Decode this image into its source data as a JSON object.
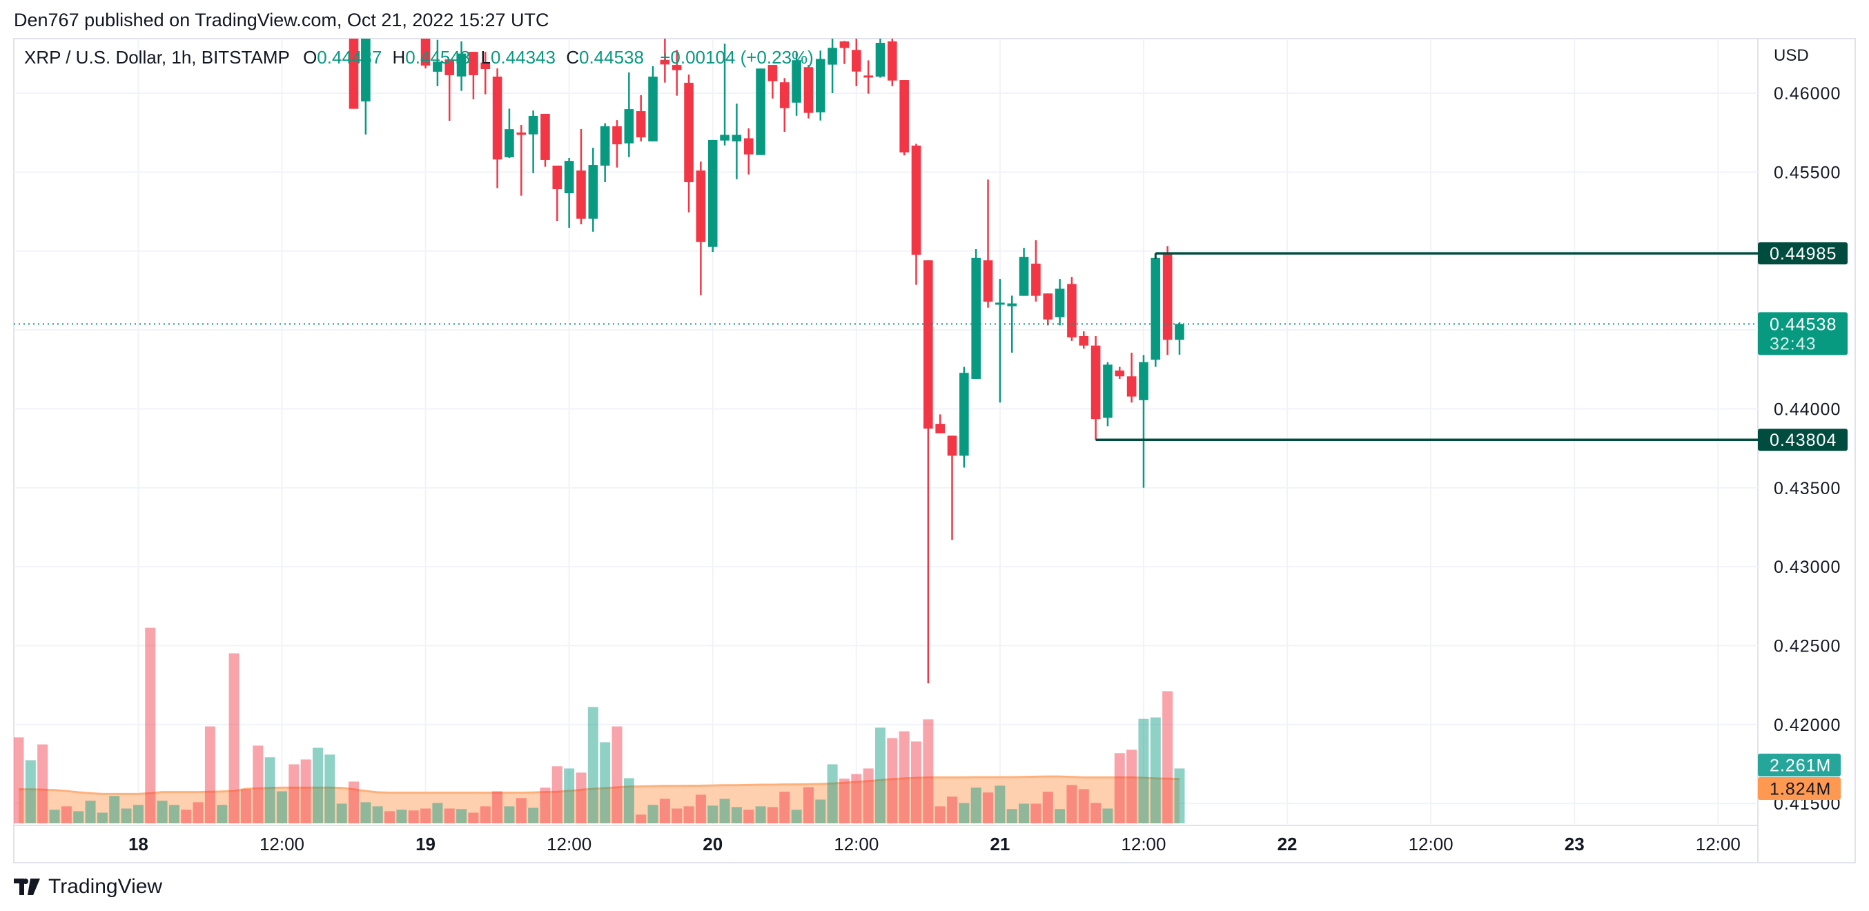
{
  "header": {
    "publish_line": "Den767 published on TradingView.com, Oct 21, 2022 15:27 UTC"
  },
  "legend": {
    "symbol": "XRP / U.S. Dollar, 1h, BITSTAMP",
    "o_label": "O",
    "o": "0.44437",
    "h_label": "H",
    "h": "0.44548",
    "l_label": "L",
    "l": "0.44343",
    "c_label": "C",
    "c": "0.44538",
    "change": "+0.00104 (+0.23%)"
  },
  "price_axis": {
    "currency": "USD",
    "ticks": [
      "0.46000",
      "0.45500",
      "0.44000",
      "0.43500",
      "0.43000",
      "0.42500",
      "0.42000",
      "0.41500"
    ]
  },
  "markers": {
    "resistance": {
      "label": "0.44985",
      "color": "#004d40"
    },
    "support": {
      "label": "0.43804",
      "color": "#004d40"
    },
    "last_price": {
      "label": "0.44538",
      "countdown": "32:43",
      "color": "#089981"
    },
    "volume": {
      "label": "2.261M",
      "color": "#26a69a"
    },
    "volume_ma": {
      "label": "1.824M",
      "color": "#ff9850"
    }
  },
  "time_axis": {
    "ticks": [
      {
        "label": "18",
        "bold": true
      },
      {
        "label": "12:00",
        "bold": false
      },
      {
        "label": "19",
        "bold": true
      },
      {
        "label": "12:00",
        "bold": false
      },
      {
        "label": "20",
        "bold": true
      },
      {
        "label": "12:00",
        "bold": false
      },
      {
        "label": "21",
        "bold": true
      },
      {
        "label": "12:00",
        "bold": false
      },
      {
        "label": "22",
        "bold": true
      },
      {
        "label": "12:00",
        "bold": false
      },
      {
        "label": "23",
        "bold": true
      },
      {
        "label": "12:00",
        "bold": false
      }
    ]
  },
  "footer": {
    "brand": "TradingView"
  },
  "colors": {
    "up": "#089981",
    "down": "#f23645",
    "grid": "#f0f3fa",
    "ma_fill": "#ffcba6",
    "ma_line": "#ffb07a"
  },
  "chart_data": {
    "type": "candlestick",
    "title": "XRP / U.S. Dollar, 1h, BITSTAMP",
    "ylabel": "USD",
    "ylim": [
      0.4115,
      0.4626
    ],
    "grid": true,
    "columns": [
      "time",
      "open",
      "high",
      "low",
      "close",
      "volume_M",
      "up"
    ],
    "candles": [
      [
        "Oct 17 14:00",
        null,
        null,
        null,
        null,
        3.54,
        0
      ],
      [
        "Oct 17 15:00",
        null,
        null,
        null,
        null,
        2.6,
        1
      ],
      [
        "Oct 17 16:00",
        null,
        null,
        null,
        null,
        3.25,
        0
      ],
      [
        "Oct 17 17:00",
        null,
        null,
        null,
        null,
        0.56,
        1
      ],
      [
        "Oct 17 18:00",
        null,
        null,
        null,
        null,
        0.7,
        0
      ],
      [
        "Oct 17 19:00",
        null,
        null,
        null,
        null,
        0.5,
        1
      ],
      [
        "Oct 17 20:00",
        null,
        null,
        null,
        null,
        0.93,
        1
      ],
      [
        "Oct 17 21:00",
        null,
        null,
        null,
        null,
        0.44,
        1
      ],
      [
        "Oct 17 22:00",
        null,
        null,
        null,
        null,
        1.13,
        1
      ],
      [
        "Oct 17 23:00",
        null,
        null,
        null,
        null,
        0.61,
        1
      ],
      [
        "Oct 18 00:00",
        null,
        null,
        null,
        null,
        0.76,
        1
      ],
      [
        "Oct 18 01:00",
        null,
        null,
        null,
        null,
        8.05,
        0
      ],
      [
        "Oct 18 02:00",
        null,
        null,
        null,
        null,
        0.93,
        1
      ],
      [
        "Oct 18 03:00",
        null,
        null,
        null,
        null,
        0.76,
        1
      ],
      [
        "Oct 18 04:00",
        null,
        null,
        null,
        null,
        0.56,
        0
      ],
      [
        "Oct 18 05:00",
        null,
        null,
        null,
        null,
        0.87,
        0
      ],
      [
        "Oct 18 06:00",
        null,
        null,
        null,
        null,
        3.99,
        0
      ],
      [
        "Oct 18 07:00",
        null,
        null,
        null,
        null,
        0.76,
        1
      ],
      [
        "Oct 18 08:00",
        null,
        null,
        null,
        null,
        7.0,
        0
      ],
      [
        "Oct 18 09:00",
        null,
        null,
        null,
        null,
        1.41,
        0
      ],
      [
        "Oct 18 10:00",
        null,
        null,
        null,
        null,
        3.2,
        0
      ],
      [
        "Oct 18 11:00",
        null,
        null,
        null,
        null,
        2.72,
        1
      ],
      [
        "Oct 18 12:00",
        null,
        null,
        null,
        null,
        1.32,
        1
      ],
      [
        "Oct 18 13:00",
        null,
        null,
        null,
        null,
        2.43,
        0
      ],
      [
        "Oct 18 14:00",
        null,
        null,
        null,
        null,
        2.63,
        0
      ],
      [
        "Oct 18 15:00",
        null,
        null,
        null,
        null,
        3.11,
        1
      ],
      [
        "Oct 18 16:00",
        null,
        null,
        null,
        null,
        2.83,
        1
      ],
      [
        "Oct 18 17:00",
        null,
        null,
        null,
        null,
        0.81,
        1
      ],
      [
        "Oct 18 18:00",
        0.4645,
        0.465,
        0.45901,
        0.45901,
        1.72,
        0
      ],
      [
        "Oct 18 19:00",
        0.45948,
        0.465,
        0.45738,
        0.4645,
        0.87,
        1
      ],
      [
        "Oct 18 20:00",
        null,
        null,
        null,
        null,
        0.7,
        1
      ],
      [
        "Oct 18 21:00",
        null,
        null,
        null,
        null,
        0.5,
        0
      ],
      [
        "Oct 18 22:00",
        null,
        null,
        null,
        null,
        0.56,
        1
      ],
      [
        "Oct 18 23:00",
        null,
        null,
        null,
        null,
        0.53,
        0
      ],
      [
        "Oct 19 00:00",
        0.464,
        0.4645,
        0.46157,
        0.46175,
        0.61,
        0
      ],
      [
        "Oct 19 01:00",
        0.46136,
        0.46338,
        0.46044,
        0.462,
        0.84,
        1
      ],
      [
        "Oct 19 02:00",
        0.46214,
        0.46214,
        0.45825,
        0.46114,
        0.61,
        0
      ],
      [
        "Oct 19 03:00",
        0.46106,
        0.46328,
        0.46015,
        0.46251,
        0.59,
        1
      ],
      [
        "Oct 19 04:00",
        0.46262,
        0.46262,
        0.45961,
        0.46114,
        0.44,
        0
      ],
      [
        "Oct 19 05:00",
        0.46194,
        0.46262,
        0.45993,
        0.46153,
        0.7,
        0
      ],
      [
        "Oct 19 06:00",
        0.46105,
        0.46157,
        0.45398,
        0.4558,
        1.32,
        0
      ],
      [
        "Oct 19 07:00",
        0.45594,
        0.45902,
        0.45589,
        0.45772,
        0.7,
        1
      ],
      [
        "Oct 19 08:00",
        0.45751,
        0.45799,
        0.4535,
        0.45736,
        1.04,
        0
      ],
      [
        "Oct 19 09:00",
        0.45739,
        0.4589,
        0.45493,
        0.45856,
        0.64,
        1
      ],
      [
        "Oct 19 10:00",
        0.45869,
        0.45869,
        0.45534,
        0.45576,
        1.47,
        0
      ],
      [
        "Oct 19 11:00",
        0.45541,
        0.45541,
        0.45191,
        0.45392,
        2.35,
        0
      ],
      [
        "Oct 19 12:00",
        0.45366,
        0.45589,
        0.45147,
        0.45571,
        2.26,
        1
      ],
      [
        "Oct 19 13:00",
        0.4551,
        0.45773,
        0.45169,
        0.45205,
        2.09,
        0
      ],
      [
        "Oct 19 14:00",
        0.45205,
        0.45654,
        0.45122,
        0.45545,
        4.79,
        1
      ],
      [
        "Oct 19 15:00",
        0.45541,
        0.4581,
        0.45436,
        0.4579,
        3.34,
        1
      ],
      [
        "Oct 19 16:00",
        0.4579,
        0.45829,
        0.45529,
        0.45676,
        3.99,
        0
      ],
      [
        "Oct 19 17:00",
        0.45682,
        0.46131,
        0.45595,
        0.45899,
        1.86,
        1
      ],
      [
        "Oct 19 18:00",
        0.45886,
        0.45987,
        0.45695,
        0.4572,
        0.36,
        0
      ],
      [
        "Oct 19 19:00",
        0.45695,
        0.46171,
        0.45695,
        0.46105,
        0.76,
        1
      ],
      [
        "Oct 19 20:00",
        0.46211,
        0.4635,
        0.46067,
        0.46182,
        1.01,
        0
      ],
      [
        "Oct 19 21:00",
        0.46179,
        0.46274,
        0.45984,
        0.46146,
        0.61,
        0
      ],
      [
        "Oct 19 22:00",
        0.46066,
        0.46118,
        0.45245,
        0.45436,
        0.7,
        0
      ],
      [
        "Oct 19 23:00",
        0.4551,
        0.45567,
        0.4472,
        0.45057,
        1.18,
        0
      ],
      [
        "Oct 20 00:00",
        0.45026,
        0.45703,
        0.44994,
        0.45703,
        0.73,
        1
      ],
      [
        "Oct 20 01:00",
        0.457,
        0.46313,
        0.45669,
        0.45736,
        1.01,
        1
      ],
      [
        "Oct 20 02:00",
        0.45695,
        0.45934,
        0.45455,
        0.45736,
        0.67,
        1
      ],
      [
        "Oct 20 03:00",
        0.45714,
        0.45777,
        0.45485,
        0.45612,
        0.56,
        0
      ],
      [
        "Oct 20 04:00",
        0.45608,
        0.46156,
        0.45608,
        0.46156,
        0.7,
        1
      ],
      [
        "Oct 20 05:00",
        0.46179,
        0.46179,
        0.45966,
        0.46076,
        0.67,
        0
      ],
      [
        "Oct 20 06:00",
        0.46069,
        0.46095,
        0.45755,
        0.45905,
        1.3,
        0
      ],
      [
        "Oct 20 07:00",
        0.4594,
        0.46262,
        0.45857,
        0.46209,
        0.56,
        1
      ],
      [
        "Oct 20 08:00",
        0.46165,
        0.46179,
        0.4584,
        0.45875,
        1.49,
        0
      ],
      [
        "Oct 20 09:00",
        0.45879,
        0.4627,
        0.45827,
        0.46217,
        0.98,
        1
      ],
      [
        "Oct 20 10:00",
        0.46181,
        0.4636,
        0.46,
        0.46287,
        2.43,
        1
      ],
      [
        "Oct 20 11:00",
        0.46328,
        0.46331,
        0.46185,
        0.46286,
        1.84,
        0
      ],
      [
        "Oct 20 12:00",
        0.46274,
        0.4636,
        0.46044,
        0.46137,
        2.03,
        0
      ],
      [
        "Oct 20 13:00",
        0.46112,
        0.46208,
        0.45997,
        0.46102,
        2.26,
        0
      ],
      [
        "Oct 20 14:00",
        0.46105,
        0.4636,
        0.46098,
        0.46319,
        3.94,
        1
      ],
      [
        "Oct 20 15:00",
        0.46328,
        0.4636,
        0.46044,
        0.4608,
        3.51,
        0
      ],
      [
        "Oct 20 16:00",
        0.46083,
        0.46083,
        0.45606,
        0.45625,
        3.79,
        0
      ],
      [
        "Oct 20 17:00",
        0.45668,
        0.45679,
        0.44786,
        0.44976,
        3.37,
        0
      ],
      [
        "Oct 20 18:00",
        0.44941,
        0.44941,
        0.42261,
        0.43875,
        4.28,
        0
      ],
      [
        "Oct 20 19:00",
        0.43905,
        0.43965,
        0.43845,
        0.43845,
        0.7,
        0
      ],
      [
        "Oct 20 20:00",
        0.4383,
        0.4383,
        0.4317,
        0.43703,
        1.1,
        0
      ],
      [
        "Oct 20 21:00",
        0.43703,
        0.44266,
        0.43628,
        0.44228,
        0.84,
        1
      ],
      [
        "Oct 20 22:00",
        0.4419,
        0.45012,
        0.4419,
        0.44956,
        1.47,
        1
      ],
      [
        "Oct 20 23:00",
        0.44941,
        0.45453,
        0.44641,
        0.44679,
        1.27,
        0
      ],
      [
        "Oct 21 00:00",
        0.44666,
        0.44823,
        0.4404,
        0.44673,
        1.55,
        1
      ],
      [
        "Oct 21 01:00",
        0.4465,
        0.44717,
        0.44356,
        0.44668,
        0.59,
        1
      ],
      [
        "Oct 21 02:00",
        0.44716,
        0.4502,
        0.44716,
        0.44963,
        0.81,
        1
      ],
      [
        "Oct 21 03:00",
        0.4492,
        0.45068,
        0.4468,
        0.44716,
        0.81,
        0
      ],
      [
        "Oct 21 04:00",
        0.44731,
        0.44731,
        0.44529,
        0.44566,
        1.3,
        0
      ],
      [
        "Oct 21 05:00",
        0.44581,
        0.44823,
        0.44529,
        0.44761,
        0.59,
        1
      ],
      [
        "Oct 21 06:00",
        0.44791,
        0.44836,
        0.44431,
        0.44453,
        1.58,
        0
      ],
      [
        "Oct 21 07:00",
        0.44461,
        0.44491,
        0.44381,
        0.44401,
        1.41,
        0
      ],
      [
        "Oct 21 08:00",
        0.44401,
        0.44461,
        0.43804,
        0.43935,
        0.84,
        0
      ],
      [
        "Oct 21 09:00",
        0.43943,
        0.44296,
        0.4389,
        0.4428,
        0.61,
        1
      ],
      [
        "Oct 21 10:00",
        0.44243,
        0.44266,
        0.4419,
        0.44206,
        2.89,
        0
      ],
      [
        "Oct 21 11:00",
        0.44206,
        0.44356,
        0.4404,
        0.44078,
        3.03,
        0
      ],
      [
        "Oct 21 12:00",
        0.44055,
        0.44341,
        0.435,
        0.44296,
        4.3,
        1
      ],
      [
        "Oct 21 13:00",
        0.44311,
        0.44985,
        0.44266,
        0.44956,
        4.36,
        1
      ],
      [
        "Oct 21 14:00",
        0.44979,
        0.45031,
        0.44341,
        0.44437,
        5.44,
        0
      ],
      [
        "Oct 21 15:00",
        0.44437,
        0.44548,
        0.44343,
        0.44538,
        2.261,
        1
      ]
    ],
    "volume_ma_M": [
      1.4,
      1.4,
      1.39,
      1.37,
      1.33,
      1.28,
      1.24,
      1.21,
      1.21,
      1.21,
      1.21,
      1.24,
      1.29,
      1.29,
      1.29,
      1.29,
      1.3,
      1.31,
      1.33,
      1.42,
      1.44,
      1.46,
      1.47,
      1.47,
      1.47,
      1.47,
      1.47,
      1.46,
      1.4,
      1.33,
      1.28,
      1.26,
      1.26,
      1.26,
      1.26,
      1.26,
      1.26,
      1.26,
      1.26,
      1.26,
      1.26,
      1.26,
      1.26,
      1.27,
      1.29,
      1.3,
      1.33,
      1.38,
      1.42,
      1.45,
      1.48,
      1.51,
      1.52,
      1.53,
      1.54,
      1.54,
      1.55,
      1.55,
      1.56,
      1.57,
      1.57,
      1.58,
      1.59,
      1.59,
      1.6,
      1.6,
      1.61,
      1.62,
      1.64,
      1.67,
      1.7,
      1.74,
      1.78,
      1.82,
      1.85,
      1.87,
      1.89,
      1.89,
      1.89,
      1.89,
      1.9,
      1.9,
      1.9,
      1.9,
      1.91,
      1.92,
      1.93,
      1.93,
      1.91,
      1.89,
      1.89,
      1.89,
      1.89,
      1.89,
      1.87,
      1.85,
      1.84,
      1.824
    ],
    "levels": [
      0.44985,
      0.43804
    ],
    "last_price": 0.44538
  }
}
